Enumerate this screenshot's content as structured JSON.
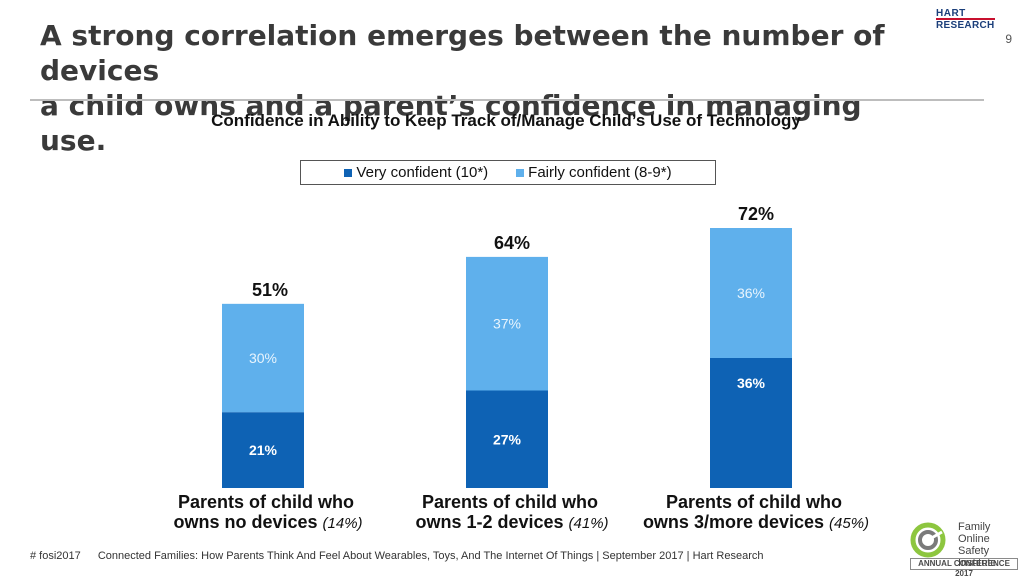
{
  "slide": {
    "title_line1": "A strong correlation emerges between the number of devices",
    "title_line2": "a child owns and a parent’s confidence in managing use.",
    "page_number": "9"
  },
  "logos": {
    "hart_line1": "HART",
    "hart_line2": "RESEARCH",
    "fosi_name": "Family Online Safety Institute",
    "fosi_conference": "ANNUAL CONFERENCE 2017"
  },
  "footer": {
    "hashtag": "# fosi2017",
    "source": "Connected Families: How Parents Think And Feel About Wearables, Toys, And The Internet Of Things | September 2017 | Hart Research"
  },
  "colors": {
    "very_confident": "#0e62b4",
    "fairly_confident": "#5fb0ec"
  },
  "chart_data": {
    "type": "bar",
    "stacked": true,
    "title": "Confidence in Ability to Keep Track of/Manage Child’s Use of Technology",
    "legend": [
      "Very confident (10*)",
      "Fairly confident (8-9*)"
    ],
    "legend_position": "top",
    "categories": [
      {
        "line1": "Parents of child who",
        "line2": "owns no devices",
        "pct": "(14%)"
      },
      {
        "line1": "Parents of child who",
        "line2": "owns 1-2 devices",
        "pct": "(41%)"
      },
      {
        "line1": "Parents of child who",
        "line2": "owns 3/more devices",
        "pct": "(45%)"
      }
    ],
    "series": [
      {
        "name": "Very confident (10*)",
        "values": [
          21,
          27,
          36
        ],
        "labels": [
          "21%",
          "27%",
          "36%"
        ]
      },
      {
        "name": "Fairly confident (8-9*)",
        "values": [
          30,
          37,
          36
        ],
        "labels": [
          "30%",
          "37%",
          "36%"
        ]
      }
    ],
    "totals": [
      51,
      64,
      72
    ],
    "total_labels": [
      "51%",
      "64%",
      "72%"
    ],
    "ylim": [
      0,
      72
    ],
    "grid": false
  }
}
